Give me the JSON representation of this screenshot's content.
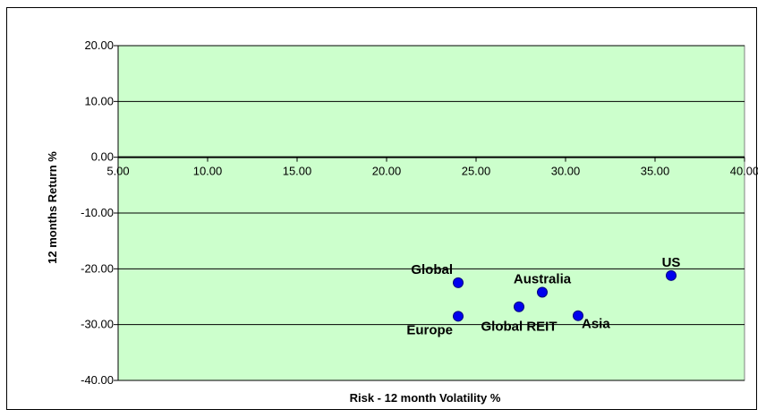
{
  "chart_data": {
    "type": "scatter",
    "title": "",
    "xlabel": "Risk - 12 month Volatility %",
    "ylabel": "12 months Return  %",
    "xlim": [
      5,
      40
    ],
    "ylim": [
      -40,
      20
    ],
    "x_ticks": [
      "5.00",
      "10.00",
      "15.00",
      "20.00",
      "25.00",
      "30.00",
      "35.00",
      "40.00"
    ],
    "y_ticks": [
      "20.00",
      "10.00",
      "0.00",
      "-10.00",
      "-20.00",
      "-30.00",
      "-40.00"
    ],
    "x_tick_values": [
      5,
      10,
      15,
      20,
      25,
      30,
      35,
      40
    ],
    "y_tick_values": [
      20,
      10,
      0,
      -10,
      -20,
      -30,
      -40
    ],
    "grid": "horizontal",
    "legend": "none",
    "points": [
      {
        "label": "Global",
        "x": 24.0,
        "y": -22.5,
        "label_pos": "upper-left"
      },
      {
        "label": "Europe",
        "x": 24.0,
        "y": -28.5,
        "label_pos": "lower-left"
      },
      {
        "label": "Global REIT",
        "x": 27.4,
        "y": -26.8,
        "label_pos": "below"
      },
      {
        "label": "Australia",
        "x": 28.7,
        "y": -24.2,
        "label_pos": "above"
      },
      {
        "label": "Asia",
        "x": 30.7,
        "y": -28.4,
        "label_pos": "lower-right"
      },
      {
        "label": "US",
        "x": 35.9,
        "y": -21.2,
        "label_pos": "above"
      }
    ],
    "colors": {
      "plot_background": "#ccffcc",
      "marker_fill": "#0000ee",
      "marker_stroke": "#000080",
      "grid": "#000000"
    }
  }
}
